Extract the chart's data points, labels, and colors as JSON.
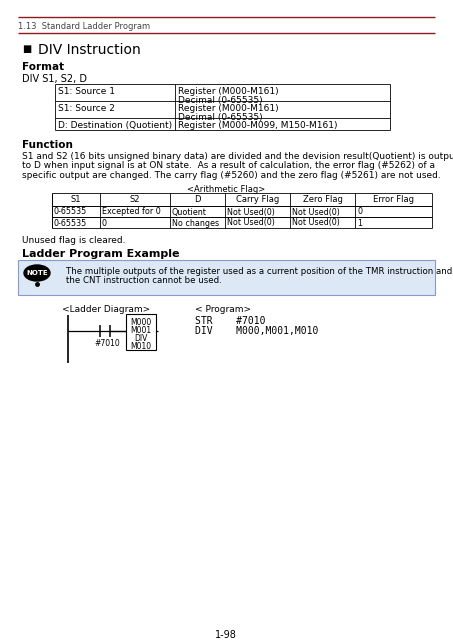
{
  "page_header": "1.13  Standard Ladder Program",
  "section_title": "DIV Instruction",
  "format_label": "Format",
  "format_syntax": "DIV S1, S2, D",
  "format_table": [
    [
      "S1: Source 1",
      "Register (M000-M161)\nDecimal (0-65535)"
    ],
    [
      "S1: Source 2",
      "Register (M000-M161)\nDecimal (0-65535)"
    ],
    [
      "D: Destination (Quotient)",
      "Register (M000-M099, M150-M161)"
    ]
  ],
  "function_label": "Function",
  "function_text": "S1 and S2 (16 bits unsigned binary data) are divided and the devision result(Quotient) is output\nto D when input signal is at ON state.  As a result of calculation, the error flag (#5262) of a\nspecific output are changed. The carry flag (#5260) and the zero flag (#5261) are not used.",
  "arith_flag_label": "<Arithmetic Flag>",
  "arith_table_headers": [
    "S1",
    "S2",
    "D",
    "Carry Flag",
    "Zero Flag",
    "Error Flag"
  ],
  "arith_table_rows": [
    [
      "0-65535",
      "Excepted for 0",
      "Quotient",
      "Not Used(0)",
      "Not Used(0)",
      "0"
    ],
    [
      "0-65535",
      "0",
      "No changes",
      "Not Used(0)",
      "Not Used(0)",
      "1"
    ]
  ],
  "unused_flag_text": "Unused flag is cleared.",
  "ladder_example_label": "Ladder Program Example",
  "note_text": "The multiple outputs of the register used as a current position of the TMR instruction and\nthe CNT instruction cannot be used.",
  "ladder_diagram_label": "<Ladder Diagram>",
  "program_label": "< Program>",
  "program_lines": [
    "STR    #7010",
    "DIV    M000,M001,M010"
  ],
  "ladder_contact_label": "#7010",
  "ladder_box_lines": [
    "M000",
    "M001",
    "DIV",
    "M010"
  ],
  "page_number": "1-98",
  "dark_red": "#8B1A1A",
  "note_bg": "#dce8f5",
  "note_border": "#8899cc"
}
